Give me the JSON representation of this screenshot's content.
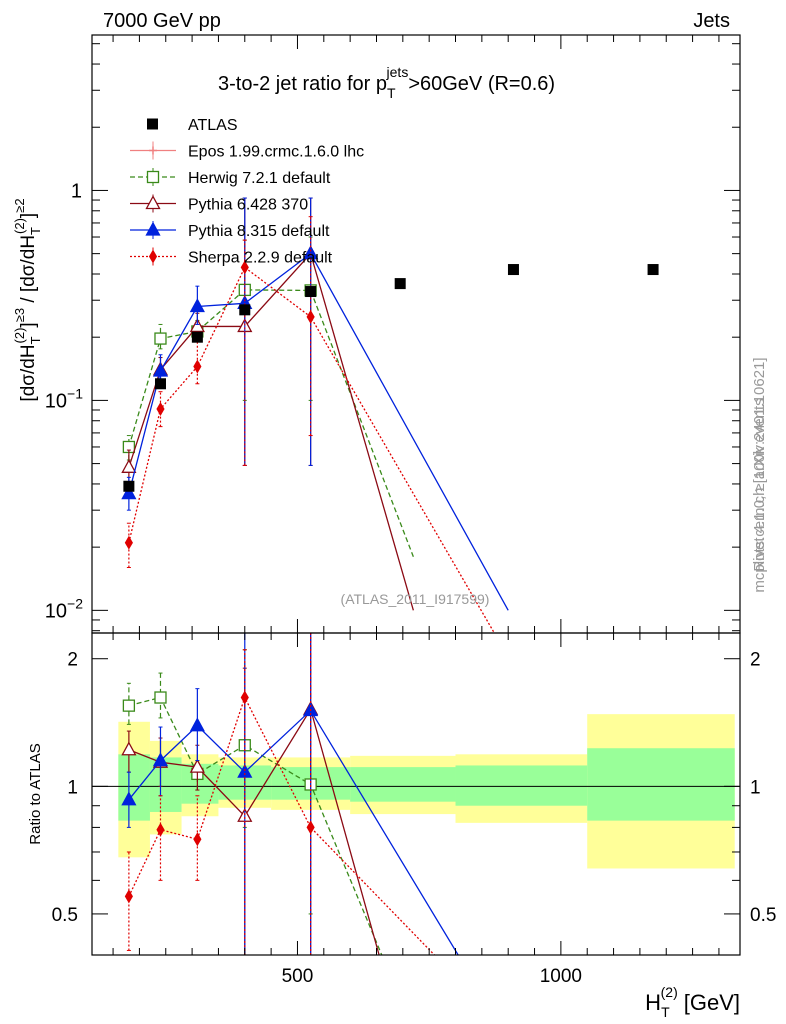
{
  "header": {
    "left": "7000 GeV pp",
    "right": "Jets"
  },
  "side_labels": {
    "rivet": "Rivet 4.1.0, ≥ 100k events",
    "mcplots": "mcplots.cern.ch [arXiv:2401.10621]"
  },
  "chart_data": {
    "type": "line",
    "title": "3-to-2 jet ratio for p_T^jets>60GeV (R=0.6)",
    "title_parts": {
      "pre": "3-to-2 jet ratio for p",
      "sub": "T",
      "sup": "jets",
      "post": ">60GeV (R=0.6)"
    },
    "watermark": "(ATLAS_2011_I917599)",
    "xlabel": "H_T^(2) [GeV]",
    "xlabel_parts": {
      "main": "H",
      "sub": "T",
      "sup": "(2)",
      "unit": "[GeV]"
    },
    "ylabel": "[dσ/dH_T^(2)]^≥3 / [dσ/dH_T^(2)]^≥2",
    "ylabel_parts": {
      "a": "[dσ/dH",
      "sub": "T",
      "sup": "(2)",
      "b": "]",
      "sup2": "≥3",
      "c": " / [dσ/dH",
      "d": "]",
      "sup3": "≥2"
    },
    "ratio_ylabel": "Ratio to ATLAS",
    "xlim": [
      110,
      1340
    ],
    "ylim": [
      0.0078,
      5.5
    ],
    "ratio_ylim": [
      0.4,
      2.3
    ],
    "y_scale": "log",
    "main_ticks": [
      {
        "value": 0.01,
        "base": "10",
        "exp": "−2"
      },
      {
        "value": 0.1,
        "base": "10",
        "exp": "−1"
      },
      {
        "value": 1,
        "base": "1",
        "exp": ""
      }
    ],
    "x_ticks": [
      {
        "value": 500,
        "label": "500"
      },
      {
        "value": 1000,
        "label": "1000"
      }
    ],
    "ratio_ticks": [
      {
        "value": 0.5,
        "label": "0.5"
      },
      {
        "value": 1,
        "label": "1"
      },
      {
        "value": 2,
        "label": "2"
      }
    ],
    "bin_edges": [
      160,
      220,
      280,
      350,
      450,
      600,
      800,
      1050,
      1330
    ],
    "band_inner": [
      [
        0.83,
        1.19
      ],
      [
        0.87,
        1.17
      ],
      [
        0.91,
        1.13
      ],
      [
        0.93,
        1.12
      ],
      [
        0.93,
        1.11
      ],
      [
        0.92,
        1.11
      ],
      [
        0.9,
        1.12
      ],
      [
        0.83,
        1.23
      ]
    ],
    "band_outer": [
      [
        0.68,
        1.42
      ],
      [
        0.77,
        1.28
      ],
      [
        0.85,
        1.19
      ],
      [
        0.89,
        1.17
      ],
      [
        0.88,
        1.17
      ],
      [
        0.86,
        1.18
      ],
      [
        0.82,
        1.19
      ],
      [
        0.64,
        1.48
      ]
    ],
    "data": {
      "name": "ATLAS",
      "x": [
        180,
        240,
        310,
        400,
        525,
        695,
        910,
        1175
      ],
      "y": [
        0.039,
        0.12,
        0.2,
        0.27,
        0.33,
        0.36,
        0.42,
        0.42
      ]
    },
    "series": [
      {
        "name": "Epos 1.99.crmc.1.6.0 lhc",
        "color": "#f08080",
        "dash": "",
        "marker": "plus",
        "fill": false,
        "x": [],
        "y": [],
        "ylo": [],
        "yhi": []
      },
      {
        "name": "Herwig 7.2.1 default",
        "color": "#3a8a1a",
        "dash": "5,3",
        "marker": "square",
        "fill": false,
        "x": [
          180,
          240,
          310,
          400,
          525,
          720
        ],
        "y": [
          0.06,
          0.197,
          0.213,
          0.336,
          0.334,
          0.018
        ],
        "ylo": [
          0.052,
          0.176,
          0.19,
          0.1,
          0.1,
          null
        ],
        "yhi": [
          0.068,
          0.23,
          0.24,
          0.58,
          0.6,
          null
        ]
      },
      {
        "name": "Pythia 6.428 370",
        "color": "#8b0a14",
        "dash": "",
        "marker": "triangle",
        "fill": false,
        "x": [
          180,
          240,
          310,
          400,
          525,
          720
        ],
        "y": [
          0.048,
          0.14,
          0.225,
          0.225,
          0.5,
          0.01
        ],
        "ylo": [
          0.04,
          0.12,
          0.19,
          0.049,
          0.049,
          null
        ],
        "yhi": [
          0.058,
          0.16,
          0.26,
          0.92,
          0.92,
          null
        ]
      },
      {
        "name": "Pythia 8.315 default",
        "color": "#0022dd",
        "dash": "",
        "marker": "triangle",
        "fill": true,
        "x": [
          180,
          240,
          310,
          400,
          525,
          900
        ],
        "y": [
          0.036,
          0.138,
          0.28,
          0.29,
          0.5,
          0.01
        ],
        "ylo": [
          0.03,
          0.115,
          0.23,
          0.049,
          0.049,
          null
        ],
        "yhi": [
          0.043,
          0.165,
          0.35,
          0.92,
          0.92,
          null
        ]
      },
      {
        "name": "Sherpa 2.2.9 default",
        "color": "#e00000",
        "dash": "2,2",
        "marker": "diamond",
        "fill": true,
        "x": [
          180,
          240,
          310,
          400,
          525,
          900
        ],
        "y": [
          0.021,
          0.091,
          0.145,
          0.43,
          0.25,
          0.006
        ],
        "ylo": [
          0.016,
          0.075,
          0.12,
          0.049,
          0.068,
          null
        ],
        "yhi": [
          0.026,
          0.11,
          0.19,
          0.58,
          0.75,
          null
        ]
      }
    ],
    "ratio_series": [
      {
        "name": "Herwig 7.2.1 default",
        "x": [
          180,
          240,
          310,
          400,
          525,
          660,
          720
        ],
        "y": [
          1.55,
          1.62,
          1.07,
          1.25,
          1.01,
          0.4,
          null
        ],
        "ylo": [
          1.4,
          1.45,
          0.98,
          0.8,
          0.5,
          null,
          null
        ],
        "yhi": [
          1.75,
          1.85,
          1.15,
          2.1,
          2.3,
          null,
          null
        ]
      },
      {
        "name": "Pythia 6.428 370",
        "x": [
          180,
          240,
          310,
          400,
          525,
          655
        ],
        "y": [
          1.22,
          1.14,
          1.11,
          0.85,
          1.52,
          0.4
        ],
        "ylo": [
          1.08,
          1.0,
          0.98,
          0.4,
          0.4,
          null
        ],
        "yhi": [
          1.35,
          1.3,
          1.25,
          1.9,
          2.3,
          null
        ]
      },
      {
        "name": "Pythia 8.315 default",
        "x": [
          180,
          240,
          310,
          400,
          525,
          805
        ],
        "y": [
          0.93,
          1.15,
          1.39,
          1.08,
          1.51,
          0.4
        ],
        "ylo": [
          0.8,
          0.95,
          1.15,
          0.4,
          0.4,
          null
        ],
        "yhi": [
          1.08,
          1.38,
          1.7,
          2.3,
          2.3,
          null
        ]
      },
      {
        "name": "Sherpa 2.2.9 default",
        "x": [
          180,
          240,
          310,
          400,
          525,
          760
        ],
        "y": [
          0.55,
          0.79,
          0.75,
          1.62,
          0.8,
          0.4
        ],
        "ylo": [
          0.41,
          0.6,
          0.6,
          0.4,
          0.4,
          null
        ],
        "yhi": [
          0.7,
          0.95,
          0.95,
          2.1,
          2.3,
          null
        ]
      }
    ]
  }
}
